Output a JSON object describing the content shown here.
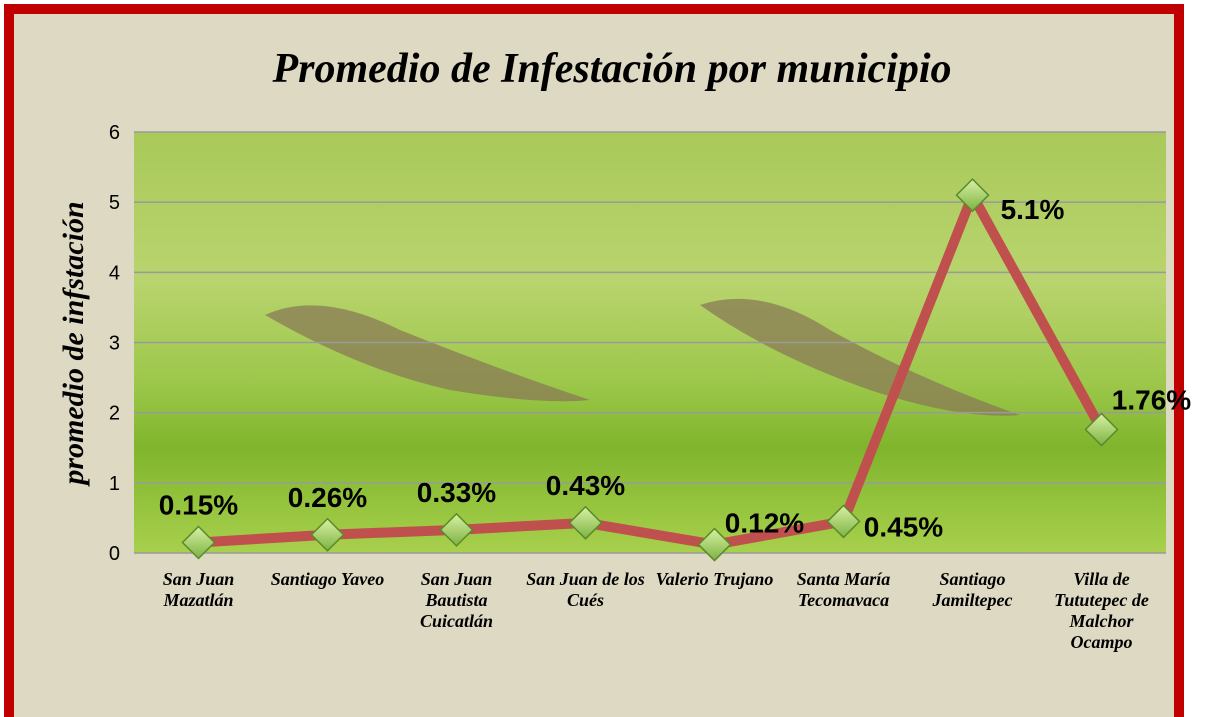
{
  "chart_data": {
    "type": "line",
    "title": "Promedio de Infestación por municipio",
    "y_label": "promedio de infstación",
    "categories": [
      "San Juan Mazatlán",
      "Santiago Yaveo",
      "San Juan Bautista Cuicatlán",
      "San Juan de los Cués",
      "Valerio Trujano",
      "Santa María Tecomavaca",
      "Santiago Jamiltepec",
      "Villa de Tututepec de Malchor Ocampo"
    ],
    "series": [
      {
        "color": "#c0504d",
        "values": [
          0.15,
          0.26,
          0.33,
          0.43,
          0.12,
          0.45,
          5.1,
          1.76
        ],
        "value_labels": [
          "0.15%",
          "0.26%",
          "0.33%",
          "0.43%",
          "0.12%",
          "0.45%",
          "5.1%",
          "1.76%"
        ]
      }
    ],
    "ylim": [
      0,
      6
    ],
    "yticks": [
      0,
      1,
      2,
      3,
      4,
      5,
      6
    ],
    "grid": true
  }
}
